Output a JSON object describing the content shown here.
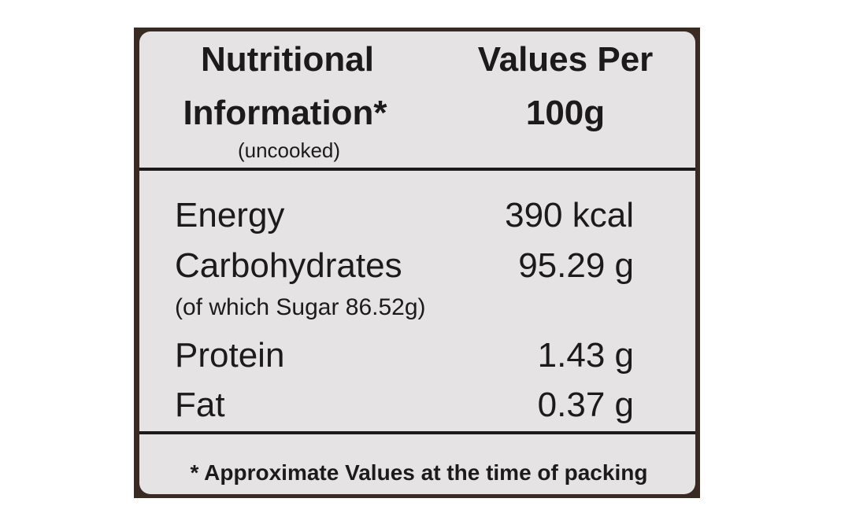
{
  "header": {
    "left": [
      "Nutritional",
      "Information*"
    ],
    "left_note": "(uncooked)",
    "right": [
      "Values Per",
      "100g"
    ]
  },
  "rows": [
    {
      "label": "Energy",
      "value": "390 kcal"
    },
    {
      "label": "Carbohydrates",
      "value": "95.29 g",
      "note": "(of which Sugar 86.52g)"
    },
    {
      "label": "Protein",
      "value": "1.43 g"
    },
    {
      "label": "Fat",
      "value": "0.37 g"
    }
  ],
  "footnote": "* Approximate Values at the time of packing"
}
